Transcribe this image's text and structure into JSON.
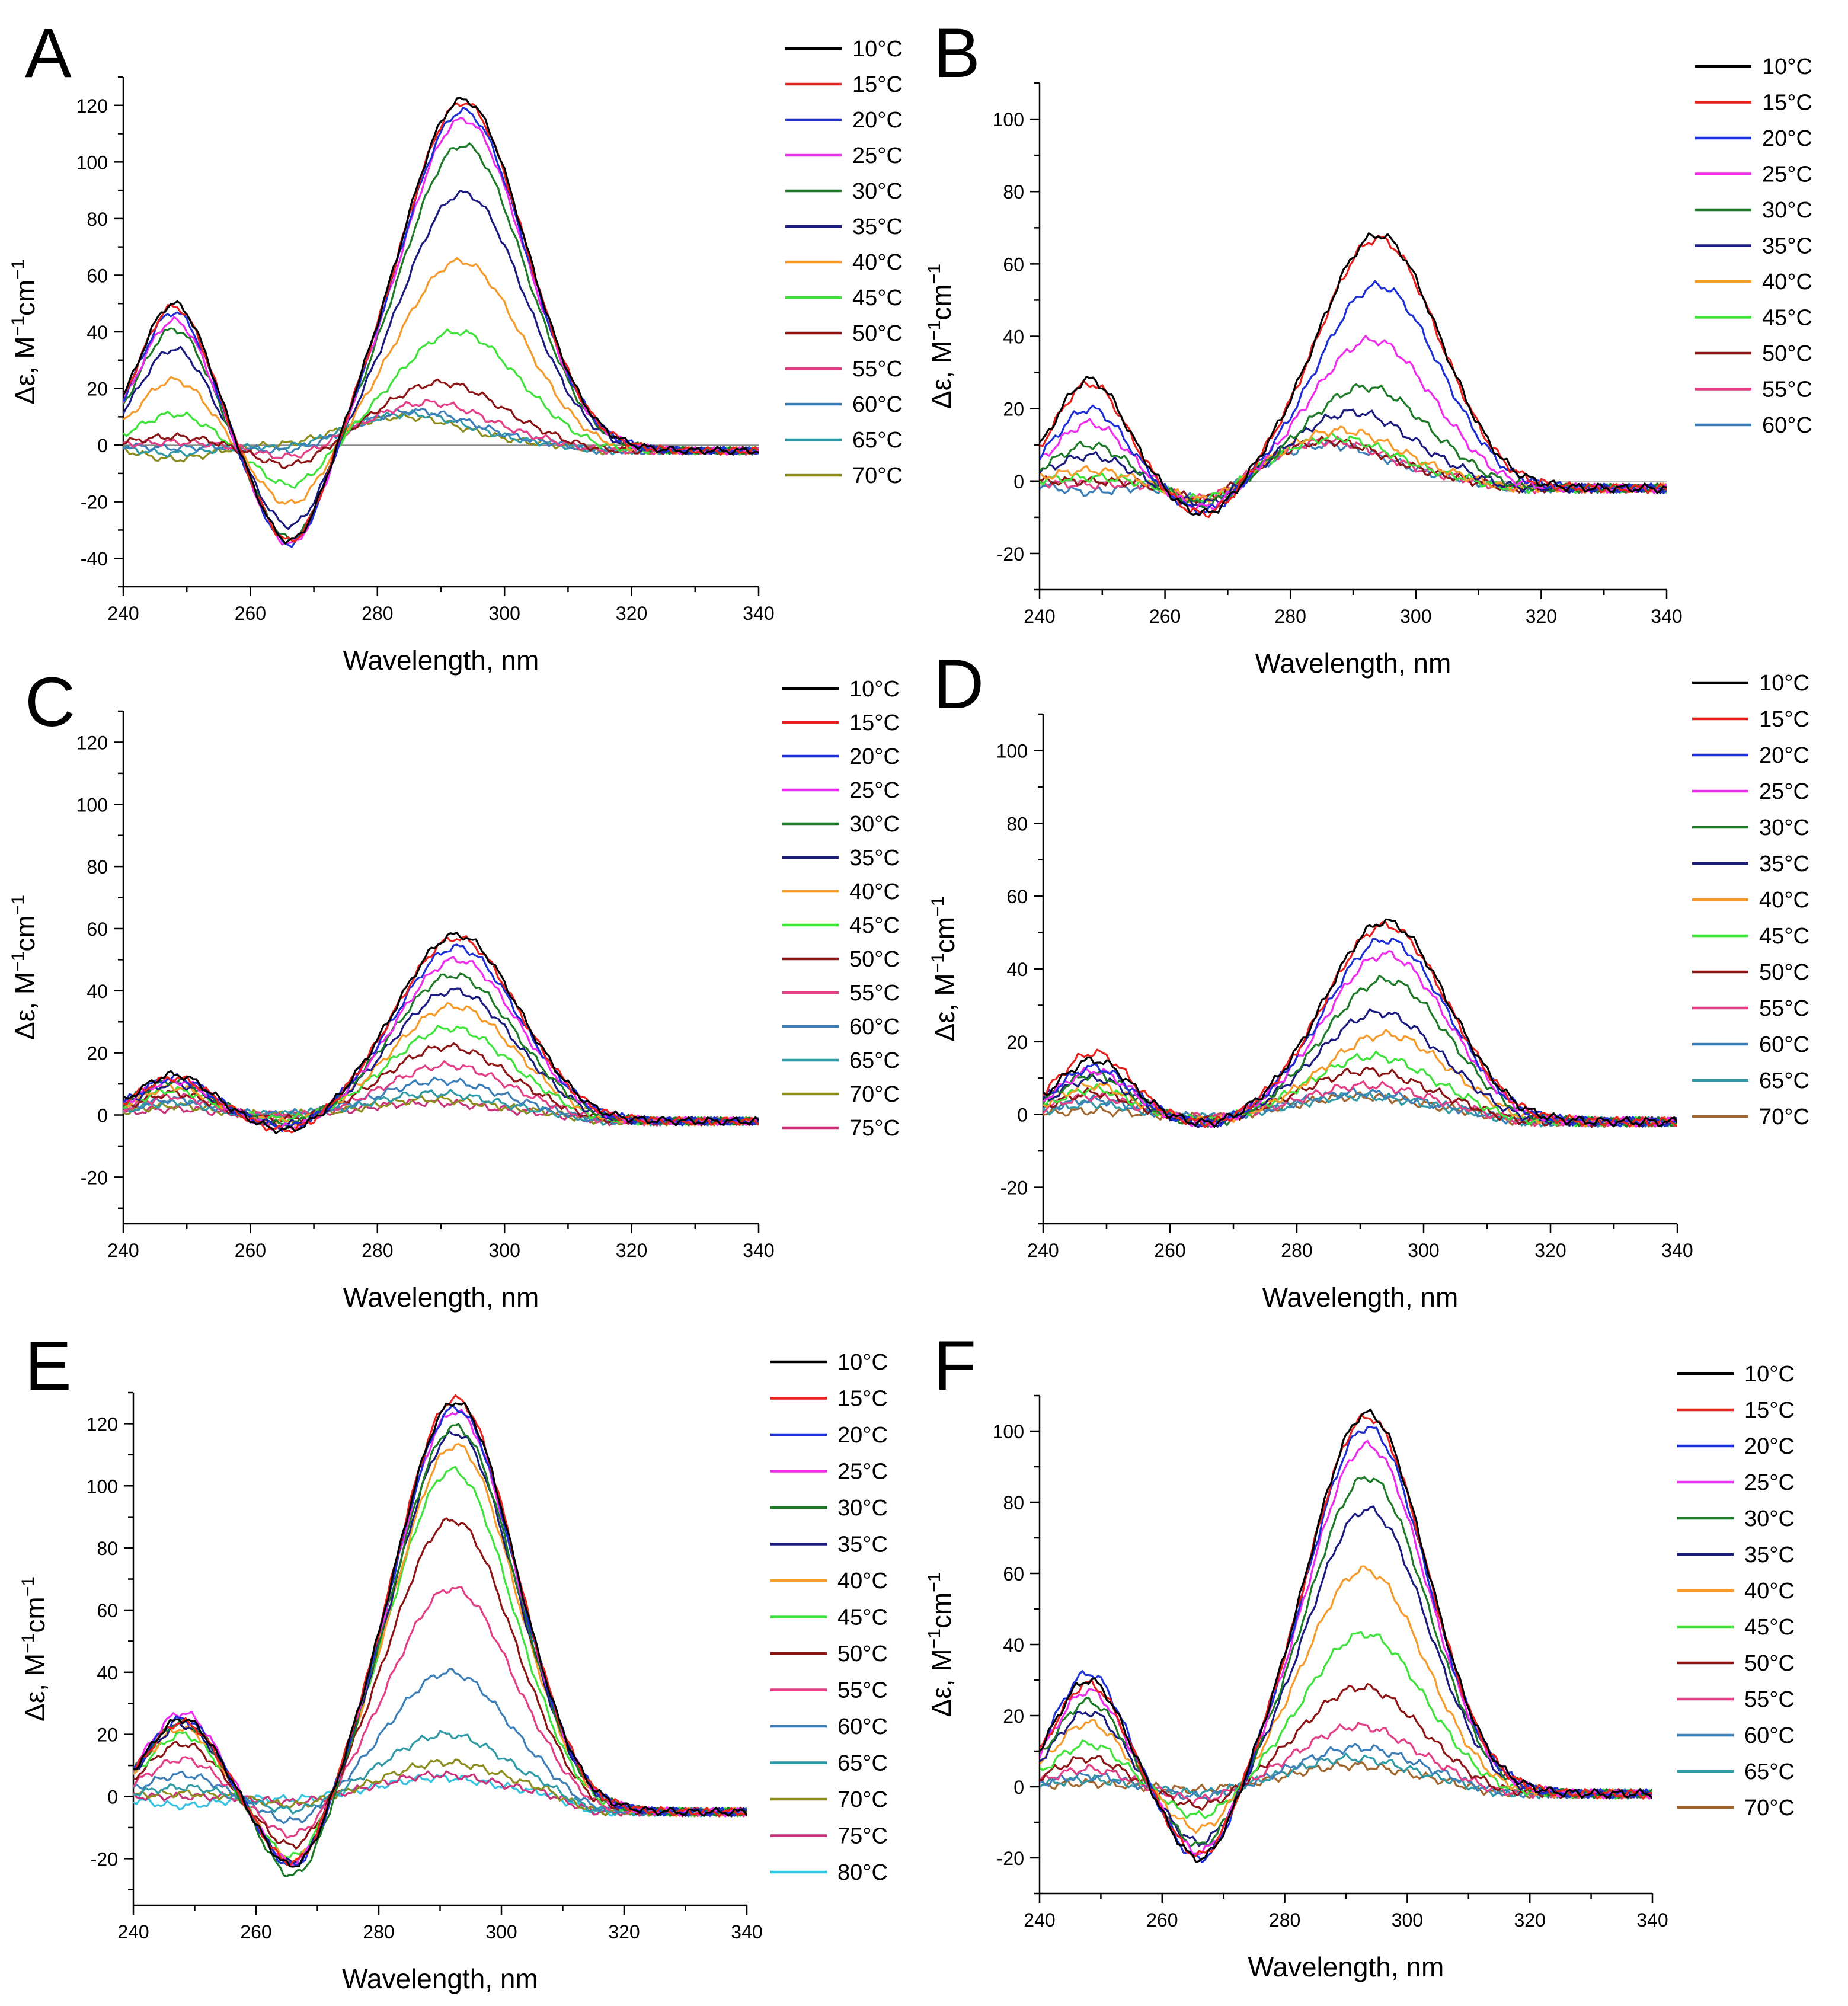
{
  "figure": {
    "panel_count": 6
  },
  "chart_data": [
    {
      "panel": "A",
      "type": "line",
      "xlabel": "Wavelength, nm",
      "ylabel_main": "Δε,  M",
      "ylabel_sup1": "−1",
      "ylabel_mid": "cm",
      "ylabel_sup2": "−1",
      "xlim": [
        240,
        340
      ],
      "ylim": [
        -50,
        130
      ],
      "xticks": [
        240,
        260,
        280,
        300,
        320,
        340
      ],
      "yticks": [
        -40,
        -20,
        0,
        20,
        40,
        60,
        80,
        100,
        120
      ],
      "zero_line": true,
      "series": [
        {
          "name": "10°C",
          "color": "#000000",
          "peak": 122,
          "peak_x": 293.5,
          "trough": -36,
          "short": 50
        },
        {
          "name": "15°C",
          "color": "#e8221e",
          "peak": 121,
          "peak_x": 293.5,
          "trough": -36,
          "short": 49
        },
        {
          "name": "20°C",
          "color": "#1f2fd6",
          "peak": 118,
          "peak_x": 293.5,
          "trough": -37,
          "short": 47
        },
        {
          "name": "25°C",
          "color": "#ee2cee",
          "peak": 115,
          "peak_x": 293.5,
          "trough": -37,
          "short": 44
        },
        {
          "name": "30°C",
          "color": "#1d7a26",
          "peak": 106,
          "peak_x": 293.5,
          "trough": -35,
          "short": 41
        },
        {
          "name": "35°C",
          "color": "#1c1c80",
          "peak": 89,
          "peak_x": 293.5,
          "trough": -30,
          "short": 34
        },
        {
          "name": "40°C",
          "color": "#f59a2b",
          "peak": 65,
          "peak_x": 293,
          "trough": -22,
          "short": 23
        },
        {
          "name": "45°C",
          "color": "#3fe23b",
          "peak": 40,
          "peak_x": 292.5,
          "trough": -15,
          "short": 11
        },
        {
          "name": "50°C",
          "color": "#8b1414",
          "peak": 22,
          "peak_x": 290,
          "trough": -8,
          "short": 3
        },
        {
          "name": "55°C",
          "color": "#e33f86",
          "peak": 15,
          "peak_x": 288,
          "trough": -5,
          "short": 1
        },
        {
          "name": "60°C",
          "color": "#3c7fb8",
          "peak": 12,
          "peak_x": 286,
          "trough": -3,
          "short": -1
        },
        {
          "name": "65°C",
          "color": "#2f9aa6",
          "peak": 11,
          "peak_x": 285,
          "trough": -2,
          "short": -3
        },
        {
          "name": "70°C",
          "color": "#8d8d1e",
          "peak": 10,
          "peak_x": 284,
          "trough": -1,
          "short": -5
        }
      ]
    },
    {
      "panel": "B",
      "type": "line",
      "xlabel": "Wavelength, nm",
      "ylabel_main": "Δε,  M",
      "ylabel_sup1": "−1",
      "ylabel_mid": "cm",
      "ylabel_sup2": "−1",
      "xlim": [
        240,
        340
      ],
      "ylim": [
        -30,
        110
      ],
      "xticks": [
        240,
        260,
        280,
        300,
        320,
        340
      ],
      "yticks": [
        -20,
        0,
        20,
        40,
        60,
        80,
        100
      ],
      "zero_line": true,
      "series": [
        {
          "name": "10°C",
          "color": "#000000",
          "peak": 68,
          "peak_x": 294,
          "trough": -10,
          "short": 28
        },
        {
          "name": "15°C",
          "color": "#e8221e",
          "peak": 67,
          "peak_x": 294,
          "trough": -10,
          "short": 27
        },
        {
          "name": "20°C",
          "color": "#1f2fd6",
          "peak": 54,
          "peak_x": 294,
          "trough": -9,
          "short": 20
        },
        {
          "name": "25°C",
          "color": "#ee2cee",
          "peak": 39,
          "peak_x": 293,
          "trough": -8,
          "short": 16
        },
        {
          "name": "30°C",
          "color": "#1d7a26",
          "peak": 26,
          "peak_x": 292,
          "trough": -7,
          "short": 10
        },
        {
          "name": "35°C",
          "color": "#1c1c80",
          "peak": 19,
          "peak_x": 290,
          "trough": -7,
          "short": 7
        },
        {
          "name": "40°C",
          "color": "#f59a2b",
          "peak": 14,
          "peak_x": 288,
          "trough": -6,
          "short": 3
        },
        {
          "name": "45°C",
          "color": "#3fe23b",
          "peak": 12,
          "peak_x": 287,
          "trough": -6,
          "short": 1
        },
        {
          "name": "50°C",
          "color": "#8b1414",
          "peak": 11,
          "peak_x": 286,
          "trough": -6,
          "short": 0
        },
        {
          "name": "55°C",
          "color": "#e33f86",
          "peak": 11,
          "peak_x": 286,
          "trough": -6,
          "short": -1
        },
        {
          "name": "60°C",
          "color": "#3c7fb8",
          "peak": 10,
          "peak_x": 286,
          "trough": -6,
          "short": -3
        }
      ]
    },
    {
      "panel": "C",
      "type": "line",
      "xlabel": "Wavelength, nm",
      "ylabel_main": "Δε,  M",
      "ylabel_sup1": "−1",
      "ylabel_mid": "cm",
      "ylabel_sup2": "−1",
      "xlim": [
        240,
        340
      ],
      "ylim": [
        -35,
        130
      ],
      "xticks": [
        240,
        260,
        280,
        300,
        320,
        340
      ],
      "yticks": [
        -20,
        0,
        20,
        40,
        60,
        80,
        100,
        120
      ],
      "zero_line": false,
      "series": [
        {
          "name": "10°C",
          "color": "#000000",
          "peak": 58,
          "peak_x": 292.5,
          "trough": -6,
          "short": 13
        },
        {
          "name": "15°C",
          "color": "#e8221e",
          "peak": 57,
          "peak_x": 292.5,
          "trough": -6,
          "short": 12
        },
        {
          "name": "20°C",
          "color": "#1f2fd6",
          "peak": 54,
          "peak_x": 292.5,
          "trough": -5,
          "short": 12
        },
        {
          "name": "25°C",
          "color": "#ee2cee",
          "peak": 50,
          "peak_x": 292.5,
          "trough": -5,
          "short": 11
        },
        {
          "name": "30°C",
          "color": "#1d7a26",
          "peak": 45,
          "peak_x": 292,
          "trough": -4,
          "short": 11
        },
        {
          "name": "35°C",
          "color": "#1c1c80",
          "peak": 40,
          "peak_x": 292,
          "trough": -4,
          "short": 10
        },
        {
          "name": "40°C",
          "color": "#f59a2b",
          "peak": 35,
          "peak_x": 292,
          "trough": -3,
          "short": 9
        },
        {
          "name": "45°C",
          "color": "#3fe23b",
          "peak": 28,
          "peak_x": 291.5,
          "trough": -2,
          "short": 8
        },
        {
          "name": "50°C",
          "color": "#8b1414",
          "peak": 22,
          "peak_x": 291,
          "trough": -2,
          "short": 7
        },
        {
          "name": "55°C",
          "color": "#e33f86",
          "peak": 16,
          "peak_x": 291,
          "trough": -1,
          "short": 6
        },
        {
          "name": "60°C",
          "color": "#3c7fb8",
          "peak": 11,
          "peak_x": 290,
          "trough": 0,
          "short": 5
        },
        {
          "name": "65°C",
          "color": "#2f9aa6",
          "peak": 7,
          "peak_x": 289,
          "trough": 0,
          "short": 4
        },
        {
          "name": "70°C",
          "color": "#8d8d1e",
          "peak": 5,
          "peak_x": 289,
          "trough": 0,
          "short": 3
        },
        {
          "name": "75°C",
          "color": "#c8327a",
          "peak": 4,
          "peak_x": 288,
          "trough": 0,
          "short": 2
        }
      ]
    },
    {
      "panel": "D",
      "type": "line",
      "xlabel": "Wavelength, nm",
      "ylabel_main": "Δε,  M",
      "ylabel_sup1": "−1",
      "ylabel_mid": "cm",
      "ylabel_sup2": "−1",
      "xlim": [
        240,
        340
      ],
      "ylim": [
        -30,
        110
      ],
      "xticks": [
        240,
        260,
        280,
        300,
        320,
        340
      ],
      "yticks": [
        -20,
        0,
        20,
        40,
        60,
        80,
        100
      ],
      "zero_line": false,
      "series": [
        {
          "name": "10°C",
          "color": "#000000",
          "peak": 53,
          "peak_x": 294,
          "trough": -3,
          "short": 15
        },
        {
          "name": "15°C",
          "color": "#e8221e",
          "peak": 52,
          "peak_x": 294,
          "trough": -3,
          "short": 17
        },
        {
          "name": "20°C",
          "color": "#1f2fd6",
          "peak": 48,
          "peak_x": 294,
          "trough": -3,
          "short": 13
        },
        {
          "name": "25°C",
          "color": "#ee2cee",
          "peak": 44,
          "peak_x": 294,
          "trough": -3,
          "short": 12
        },
        {
          "name": "30°C",
          "color": "#1d7a26",
          "peak": 37,
          "peak_x": 294,
          "trough": -3,
          "short": 11
        },
        {
          "name": "35°C",
          "color": "#1c1c80",
          "peak": 28,
          "peak_x": 293,
          "trough": -3,
          "short": 10
        },
        {
          "name": "40°C",
          "color": "#f59a2b",
          "peak": 22,
          "peak_x": 294,
          "trough": -2,
          "short": 8
        },
        {
          "name": "45°C",
          "color": "#3fe23b",
          "peak": 16,
          "peak_x": 292,
          "trough": -2,
          "short": 7
        },
        {
          "name": "50°C",
          "color": "#8b1414",
          "peak": 12,
          "peak_x": 291,
          "trough": -2,
          "short": 6
        },
        {
          "name": "55°C",
          "color": "#e33f86",
          "peak": 8,
          "peak_x": 291,
          "trough": -1,
          "short": 5
        },
        {
          "name": "60°C",
          "color": "#3c7fb8",
          "peak": 6,
          "peak_x": 290,
          "trough": -1,
          "short": 4
        },
        {
          "name": "65°C",
          "color": "#2f9aa6",
          "peak": 5,
          "peak_x": 290,
          "trough": -1,
          "short": 3
        },
        {
          "name": "70°C",
          "color": "#a0662e",
          "peak": 5,
          "peak_x": 290,
          "trough": -1,
          "short": 1
        }
      ]
    },
    {
      "panel": "E",
      "type": "line",
      "xlabel": "Wavelength, nm",
      "ylabel_main": "Δε,  M",
      "ylabel_sup1": "−1",
      "ylabel_mid": "cm",
      "ylabel_sup2": "−1",
      "xlim": [
        240,
        340
      ],
      "ylim": [
        -35,
        130
      ],
      "xticks": [
        240,
        260,
        280,
        300,
        320,
        340
      ],
      "yticks": [
        -20,
        0,
        20,
        40,
        60,
        80,
        100,
        120
      ],
      "zero_line": false,
      "series": [
        {
          "name": "10°C",
          "color": "#000000",
          "peak": 127,
          "peak_x": 292.5,
          "trough": -25,
          "short": 25
        },
        {
          "name": "15°C",
          "color": "#e8221e",
          "peak": 128,
          "peak_x": 292.5,
          "trough": -24,
          "short": 24
        },
        {
          "name": "20°C",
          "color": "#1f2fd6",
          "peak": 125,
          "peak_x": 292.5,
          "trough": -25,
          "short": 25
        },
        {
          "name": "25°C",
          "color": "#ee2cee",
          "peak": 124,
          "peak_x": 292.5,
          "trough": -24,
          "short": 27
        },
        {
          "name": "30°C",
          "color": "#1d7a26",
          "peak": 119,
          "peak_x": 292.5,
          "trough": -28,
          "short": 24
        },
        {
          "name": "35°C",
          "color": "#1c1c80",
          "peak": 117,
          "peak_x": 292.5,
          "trough": -24,
          "short": 23
        },
        {
          "name": "40°C",
          "color": "#f59a2b",
          "peak": 113,
          "peak_x": 292.5,
          "trough": -23,
          "short": 22
        },
        {
          "name": "45°C",
          "color": "#3fe23b",
          "peak": 105,
          "peak_x": 292,
          "trough": -22,
          "short": 20
        },
        {
          "name": "50°C",
          "color": "#8b1414",
          "peak": 89,
          "peak_x": 292,
          "trough": -18,
          "short": 17
        },
        {
          "name": "55°C",
          "color": "#e33f86",
          "peak": 67,
          "peak_x": 292,
          "trough": -14,
          "short": 12
        },
        {
          "name": "60°C",
          "color": "#3c7fb8",
          "peak": 40,
          "peak_x": 291.5,
          "trough": -9,
          "short": 7
        },
        {
          "name": "65°C",
          "color": "#2f9aa6",
          "peak": 20,
          "peak_x": 291,
          "trough": -5,
          "short": 3
        },
        {
          "name": "70°C",
          "color": "#8d8d1e",
          "peak": 11,
          "peak_x": 291,
          "trough": -3,
          "short": 1
        },
        {
          "name": "75°C",
          "color": "#c8327a",
          "peak": 7,
          "peak_x": 290,
          "trough": -2,
          "short": 0
        },
        {
          "name": "80°C",
          "color": "#34c3e0",
          "peak": 6,
          "peak_x": 290,
          "trough": -1,
          "short": -3
        }
      ]
    },
    {
      "panel": "F",
      "type": "line",
      "xlabel": "Wavelength, nm",
      "ylabel_main": "Δε,  M",
      "ylabel_sup1": "−1",
      "ylabel_mid": "cm",
      "ylabel_sup2": "−1",
      "xlim": [
        240,
        340
      ],
      "ylim": [
        -30,
        110
      ],
      "xticks": [
        240,
        260,
        280,
        300,
        320,
        340
      ],
      "yticks": [
        -20,
        0,
        20,
        40,
        60,
        80,
        100
      ],
      "zero_line": false,
      "series": [
        {
          "name": "10°C",
          "color": "#000000",
          "peak": 105,
          "peak_x": 293.5,
          "trough": -22,
          "short": 30
        },
        {
          "name": "15°C",
          "color": "#e8221e",
          "peak": 104,
          "peak_x": 293.5,
          "trough": -21,
          "short": 29
        },
        {
          "name": "20°C",
          "color": "#1f2fd6",
          "peak": 101,
          "peak_x": 293.5,
          "trough": -22,
          "short": 32
        },
        {
          "name": "25°C",
          "color": "#ee2cee",
          "peak": 96,
          "peak_x": 293.5,
          "trough": -20,
          "short": 27
        },
        {
          "name": "30°C",
          "color": "#1d7a26",
          "peak": 87,
          "peak_x": 293.5,
          "trough": -18,
          "short": 24
        },
        {
          "name": "35°C",
          "color": "#1c1c80",
          "peak": 78,
          "peak_x": 293.5,
          "trough": -17,
          "short": 21
        },
        {
          "name": "40°C",
          "color": "#f59a2b",
          "peak": 61,
          "peak_x": 293,
          "trough": -13,
          "short": 18
        },
        {
          "name": "45°C",
          "color": "#3fe23b",
          "peak": 43,
          "peak_x": 293,
          "trough": -9,
          "short": 12
        },
        {
          "name": "50°C",
          "color": "#8b1414",
          "peak": 28,
          "peak_x": 292.5,
          "trough": -6,
          "short": 8
        },
        {
          "name": "55°C",
          "color": "#e33f86",
          "peak": 17,
          "peak_x": 292,
          "trough": -4,
          "short": 5
        },
        {
          "name": "60°C",
          "color": "#3c7fb8",
          "peak": 11,
          "peak_x": 292,
          "trough": -3,
          "short": 3
        },
        {
          "name": "65°C",
          "color": "#2f9aa6",
          "peak": 8,
          "peak_x": 291,
          "trough": -2,
          "short": 2
        },
        {
          "name": "70°C",
          "color": "#a0662e",
          "peak": 6,
          "peak_x": 291,
          "trough": -1,
          "short": 1
        }
      ]
    }
  ]
}
